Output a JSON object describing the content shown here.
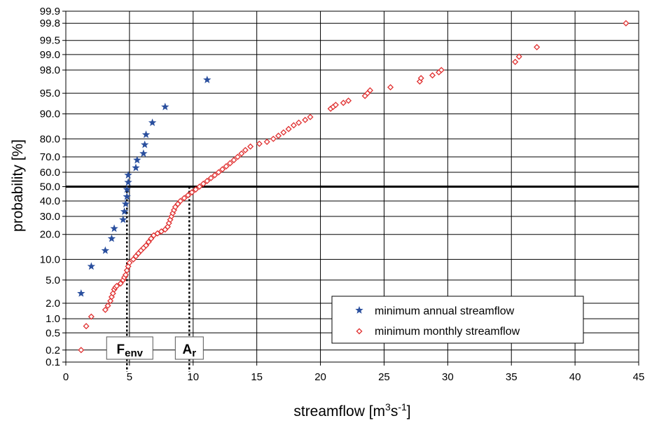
{
  "chart_data": {
    "type": "scatter",
    "title": "",
    "xlabel": {
      "main": "streamflow  [m",
      "sup": "3",
      "mid": "s",
      "sup2": "-1",
      "end": "]"
    },
    "ylabel": "probability  [%]",
    "xlim": [
      0,
      45
    ],
    "x_ticks": [
      "0",
      "5",
      "10",
      "15",
      "20",
      "25",
      "30",
      "35",
      "40",
      "45"
    ],
    "y_scale": "normal-probability",
    "y_ticks": [
      "0.1",
      "0.2",
      "0.5",
      "1.0",
      "2.0",
      "5.0",
      "10.0",
      "20.0",
      "30.0",
      "40.0",
      "50.0",
      "60.0",
      "70.0",
      "80.0",
      "90.0",
      "95.0",
      "98.0",
      "99.0",
      "99.5",
      "99.8",
      "99.9"
    ],
    "grid": true,
    "legend_position": "bottom-right",
    "series": [
      {
        "name": "minimum annual streamflow",
        "marker": "star",
        "color": "#2a4f9e",
        "points": [
          [
            1.2,
            3
          ],
          [
            2.0,
            8
          ],
          [
            3.1,
            13
          ],
          [
            3.6,
            18
          ],
          [
            3.8,
            23
          ],
          [
            4.5,
            28
          ],
          [
            4.6,
            33
          ],
          [
            4.7,
            38
          ],
          [
            4.8,
            43
          ],
          [
            4.8,
            48
          ],
          [
            4.9,
            53
          ],
          [
            4.9,
            58
          ],
          [
            5.5,
            63
          ],
          [
            5.6,
            68
          ],
          [
            6.1,
            72
          ],
          [
            6.2,
            77
          ],
          [
            6.3,
            82
          ],
          [
            6.8,
            87
          ],
          [
            7.8,
            92
          ],
          [
            11.1,
            97
          ]
        ]
      },
      {
        "name": "minimum monthly streamflow",
        "marker": "diamond",
        "color": "#e03030",
        "points": [
          [
            1.2,
            0.2
          ],
          [
            1.6,
            0.7
          ],
          [
            2.0,
            1.1
          ],
          [
            3.1,
            1.5
          ],
          [
            3.3,
            1.8
          ],
          [
            3.5,
            2.2
          ],
          [
            3.6,
            2.6
          ],
          [
            3.7,
            3.0
          ],
          [
            3.8,
            3.5
          ],
          [
            3.9,
            3.8
          ],
          [
            4.0,
            4.0
          ],
          [
            4.3,
            4.4
          ],
          [
            4.5,
            5.0
          ],
          [
            4.6,
            5.5
          ],
          [
            4.7,
            6.0
          ],
          [
            4.8,
            7.0
          ],
          [
            4.9,
            8.0
          ],
          [
            5.0,
            9.0
          ],
          [
            5.3,
            10.0
          ],
          [
            5.5,
            11.0
          ],
          [
            5.7,
            12.0
          ],
          [
            5.9,
            13.0
          ],
          [
            6.1,
            14.0
          ],
          [
            6.3,
            15.0
          ],
          [
            6.5,
            16.5
          ],
          [
            6.7,
            18.0
          ],
          [
            6.9,
            19.5
          ],
          [
            7.2,
            20.5
          ],
          [
            7.5,
            21.5
          ],
          [
            7.8,
            22.5
          ],
          [
            8.0,
            24.0
          ],
          [
            8.1,
            26.0
          ],
          [
            8.2,
            28.0
          ],
          [
            8.3,
            30.0
          ],
          [
            8.4,
            32.0
          ],
          [
            8.5,
            34.0
          ],
          [
            8.6,
            36.0
          ],
          [
            8.8,
            38.0
          ],
          [
            9.0,
            40.0
          ],
          [
            9.3,
            42.0
          ],
          [
            9.6,
            44.0
          ],
          [
            9.9,
            46.0
          ],
          [
            10.2,
            48.0
          ],
          [
            10.5,
            50.0
          ],
          [
            10.8,
            52.0
          ],
          [
            11.1,
            54.0
          ],
          [
            11.4,
            56.0
          ],
          [
            11.7,
            58.0
          ],
          [
            12.0,
            60.0
          ],
          [
            12.3,
            62.0
          ],
          [
            12.6,
            64.0
          ],
          [
            12.9,
            66.0
          ],
          [
            13.2,
            68.0
          ],
          [
            13.5,
            70.0
          ],
          [
            13.8,
            72.0
          ],
          [
            14.1,
            74.0
          ],
          [
            14.5,
            76.0
          ],
          [
            15.2,
            77.5
          ],
          [
            15.8,
            78.5
          ],
          [
            16.3,
            80.0
          ],
          [
            16.7,
            81.5
          ],
          [
            17.1,
            83.0
          ],
          [
            17.5,
            84.5
          ],
          [
            17.9,
            86.0
          ],
          [
            18.3,
            87.0
          ],
          [
            18.8,
            88.0
          ],
          [
            19.2,
            89.0
          ],
          [
            20.8,
            91.5
          ],
          [
            21.0,
            92.0
          ],
          [
            21.2,
            92.5
          ],
          [
            21.8,
            93.0
          ],
          [
            22.2,
            93.5
          ],
          [
            23.5,
            94.5
          ],
          [
            23.7,
            95.0
          ],
          [
            23.9,
            95.5
          ],
          [
            25.5,
            96.0
          ],
          [
            27.8,
            96.8
          ],
          [
            27.9,
            97.2
          ],
          [
            28.8,
            97.5
          ],
          [
            29.3,
            97.8
          ],
          [
            29.5,
            98.0
          ],
          [
            35.3,
            98.6
          ],
          [
            35.6,
            98.9
          ],
          [
            37.0,
            99.3
          ],
          [
            44.0,
            99.8
          ]
        ]
      }
    ],
    "reference_lines": {
      "horizontal_probability": 50,
      "vertical_markers": [
        {
          "x": 4.8,
          "label_main": "F",
          "label_sub": "env"
        },
        {
          "x": 9.7,
          "label_main": "A",
          "label_sub": "r"
        }
      ]
    },
    "colors": {
      "grid": "#000000",
      "axis": "#000000",
      "annual": "#2a4f9e",
      "monthly": "#e03030"
    }
  }
}
